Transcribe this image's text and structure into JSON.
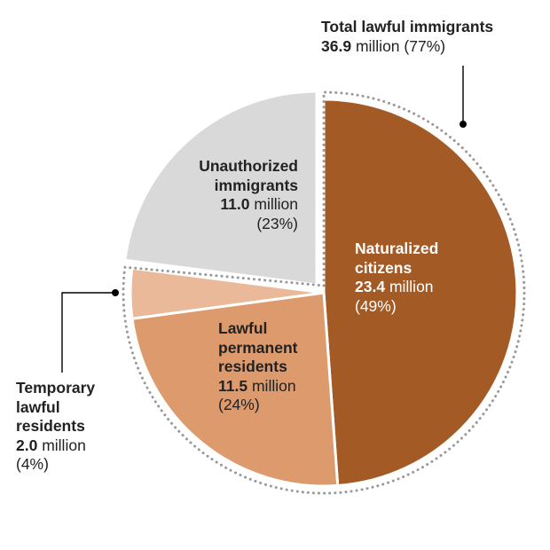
{
  "chart_data": {
    "type": "pie",
    "title": "",
    "slices": [
      {
        "key": "naturalized",
        "name_line1": "Naturalized",
        "name_line2": "citizens",
        "value": 23.4,
        "value_text": "23.4",
        "unit": "million",
        "percent": 49,
        "percent_text": "(49%)",
        "color": "#a45a25"
      },
      {
        "key": "lpr",
        "name_line1": "Lawful",
        "name_line2": "permanent",
        "name_line3": "residents",
        "value": 11.5,
        "value_text": "11.5",
        "unit": "million",
        "percent": 24,
        "percent_text": "(24%)",
        "color": "#dd9a6c"
      },
      {
        "key": "temporary",
        "name_line1": "Temporary",
        "name_line2": "lawful",
        "name_line3": "residents",
        "value": 2.0,
        "value_text": "2.0",
        "unit": "million",
        "percent": 4,
        "percent_text": "(4%)",
        "color": "#eab99a"
      },
      {
        "key": "unauthorized",
        "name_line1": "Unauthorized",
        "name_line2": "immigrants",
        "value": 11.0,
        "value_text": "11.0",
        "unit": "million",
        "percent": 23,
        "percent_text": "(23%)",
        "color": "#d9d9d9"
      }
    ],
    "group": {
      "name": "Total lawful immigrants",
      "value": 36.9,
      "value_text": "36.9",
      "unit": "million",
      "percent": 77,
      "percent_text": "(77%)"
    }
  }
}
